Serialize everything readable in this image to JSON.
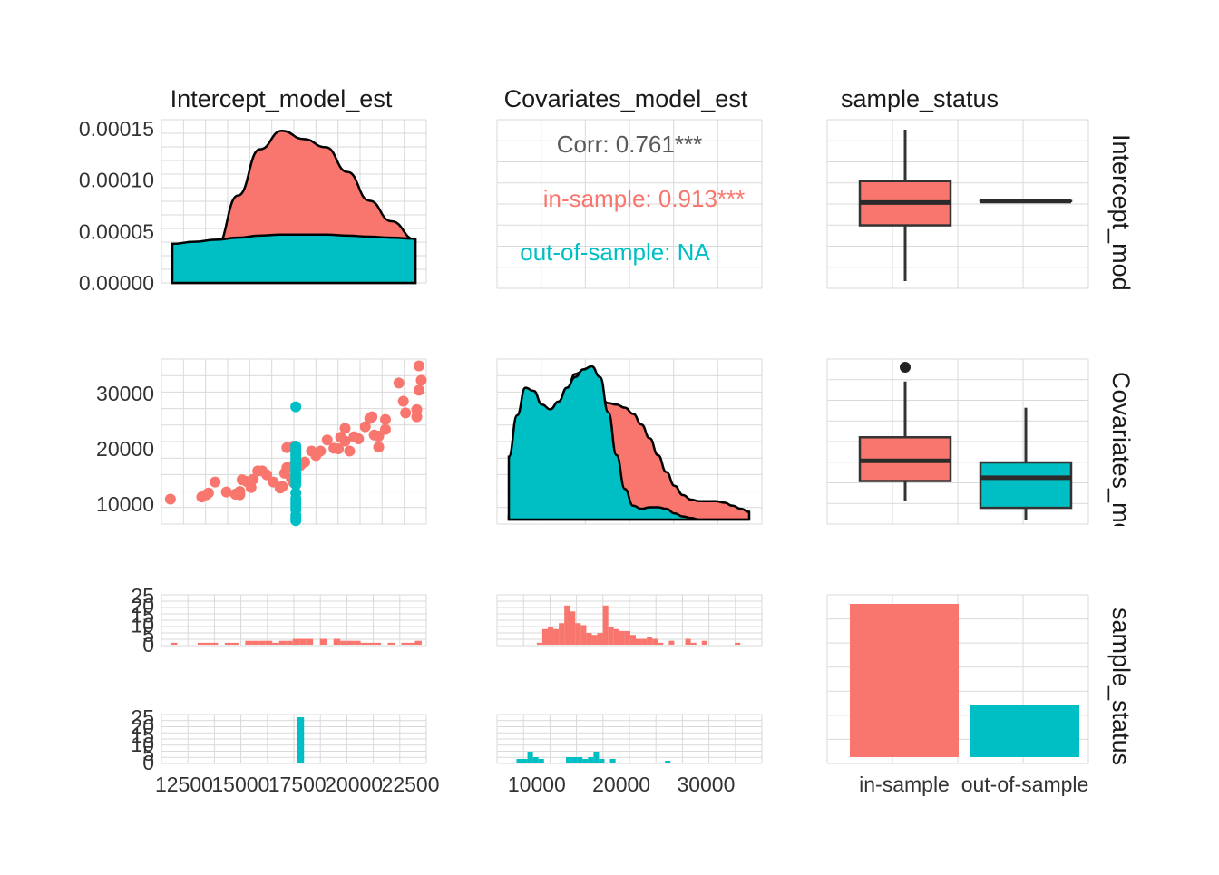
{
  "colors": {
    "in_sample": "#F8766D",
    "out_of_sample": "#00BFC4",
    "ink": "#000000",
    "grid": "#d9d9d9"
  },
  "columns": [
    "Intercept_model_est",
    "Covariates_model_est",
    "sample_status"
  ],
  "rows": [
    "Intercept_model_est",
    "Covariates_model_est",
    "sample_status"
  ],
  "chart_data": [
    {
      "type": "area",
      "panel": "density-intercept",
      "x_range": [
        11500,
        22600
      ],
      "y_range": [
        0,
        0.00015
      ],
      "y_ticks": [
        "0.00015",
        "0.00010",
        "0.00005",
        "0.00000"
      ],
      "y_tick_values": [
        0.00015,
        0.0001,
        5e-05,
        0
      ],
      "series": [
        {
          "name": "in-sample",
          "x": [
            11500,
            12500,
            13500,
            14500,
            15500,
            16500,
            17500,
            18500,
            19500,
            20500,
            21500,
            22600
          ],
          "values": [
            5e-07,
            8e-06,
            3.5e-05,
            8.5e-05,
            0.00013,
            0.000148,
            0.00014,
            0.000132,
            0.000108,
            8e-05,
            6e-05,
            4.2e-05
          ]
        },
        {
          "name": "out-of-sample",
          "x": [
            11500,
            12500,
            13500,
            14500,
            15500,
            16500,
            17500,
            18500,
            19500,
            20500,
            21500,
            22600
          ],
          "values": [
            3.8e-05,
            4e-05,
            4.2e-05,
            4.4e-05,
            4.6e-05,
            4.7e-05,
            4.7e-05,
            4.7e-05,
            4.6e-05,
            4.5e-05,
            4.4e-05,
            4.3e-05
          ]
        }
      ]
    },
    {
      "type": "table",
      "panel": "correlation",
      "entries": [
        {
          "label": "Corr: 0.761***",
          "color": "#595959"
        },
        {
          "label": "in-sample: 0.913***",
          "color": "#F8766D"
        },
        {
          "label": "out-of-sample:   NA",
          "color": "#00BFC4"
        }
      ]
    },
    {
      "type": "box",
      "panel": "box-intercept",
      "categories": [
        "in-sample",
        "out-of-sample"
      ],
      "y_range": [
        11900,
        22500
      ],
      "series": [
        {
          "name": "in-sample",
          "min": 11900,
          "q1": 15800,
          "median": 17400,
          "q3": 18900,
          "max": 22500,
          "outliers": []
        },
        {
          "name": "out-of-sample",
          "min": 17500,
          "q1": 17500,
          "median": 17500,
          "q3": 17500,
          "max": 17500,
          "outliers": []
        }
      ]
    },
    {
      "type": "scatter",
      "panel": "scatter",
      "x_range": [
        11500,
        23000
      ],
      "y_range": [
        6000,
        36500
      ],
      "y_ticks": [
        "30000",
        "20000",
        "10000"
      ],
      "y_tick_values": [
        30000,
        20000,
        10000
      ],
      "series": [
        {
          "name": "in-sample",
          "points": [
            [
              11900,
              10900
            ],
            [
              13300,
              11300
            ],
            [
              13500,
              11700
            ],
            [
              13900,
              14000
            ],
            [
              13600,
              12000
            ],
            [
              14400,
              12200
            ],
            [
              14800,
              11800
            ],
            [
              15000,
              12300
            ],
            [
              15000,
              11700
            ],
            [
              15100,
              14400
            ],
            [
              15300,
              14100
            ],
            [
              15500,
              13000
            ],
            [
              15600,
              14500
            ],
            [
              15800,
              16000
            ],
            [
              16000,
              16000
            ],
            [
              16200,
              15300
            ],
            [
              16500,
              14000
            ],
            [
              16800,
              12900
            ],
            [
              16900,
              13200
            ],
            [
              17000,
              15600
            ],
            [
              17100,
              16600
            ],
            [
              17300,
              16800
            ],
            [
              17400,
              13900
            ],
            [
              17500,
              16200
            ],
            [
              17300,
              14600
            ],
            [
              17100,
              20200
            ],
            [
              17400,
              20500
            ],
            [
              17700,
              17000
            ],
            [
              17900,
              17600
            ],
            [
              18200,
              19600
            ],
            [
              18400,
              18800
            ],
            [
              18600,
              19600
            ],
            [
              18900,
              21600
            ],
            [
              19200,
              20100
            ],
            [
              19400,
              20000
            ],
            [
              19500,
              22100
            ],
            [
              19700,
              23700
            ],
            [
              19900,
              19600
            ],
            [
              19700,
              21400
            ],
            [
              20100,
              22200
            ],
            [
              20300,
              21800
            ],
            [
              20600,
              24000
            ],
            [
              20800,
              25500
            ],
            [
              21000,
              22500
            ],
            [
              21200,
              20300
            ],
            [
              21500,
              23500
            ],
            [
              21200,
              22300
            ],
            [
              21500,
              25300
            ],
            [
              22100,
              31900
            ],
            [
              22300,
              28600
            ],
            [
              22400,
              26500
            ],
            [
              22900,
              27100
            ],
            [
              22900,
              25800
            ],
            [
              23000,
              30600
            ],
            [
              23100,
              32400
            ],
            [
              23000,
              35000
            ],
            [
              20900,
              25800
            ]
          ]
        },
        {
          "name": "out-of-sample",
          "points": [
            [
              17500,
              27600
            ],
            [
              17500,
              20500
            ],
            [
              17500,
              20000
            ],
            [
              17500,
              19600
            ],
            [
              17500,
              19100
            ],
            [
              17500,
              18700
            ],
            [
              17500,
              18300
            ],
            [
              17500,
              17900
            ],
            [
              17500,
              17500
            ],
            [
              17500,
              17000
            ],
            [
              17500,
              16500
            ],
            [
              17500,
              16000
            ],
            [
              17500,
              15500
            ],
            [
              17500,
              15000
            ],
            [
              17500,
              14500
            ],
            [
              17500,
              14000
            ],
            [
              17500,
              13500
            ],
            [
              17500,
              12000
            ],
            [
              17500,
              11000
            ],
            [
              17500,
              10500
            ],
            [
              17500,
              10000
            ],
            [
              17500,
              9500
            ],
            [
              17500,
              9000
            ],
            [
              17500,
              8000
            ],
            [
              17500,
              7500
            ],
            [
              17500,
              7000
            ]
          ]
        }
      ]
    },
    {
      "type": "area",
      "panel": "density-covariates",
      "x_range": [
        6500,
        35500
      ],
      "y_range": [
        0,
        1
      ],
      "series": [
        {
          "name": "in-sample",
          "x": [
            6500,
            7500,
            8500,
            9500,
            10500,
            11500,
            12500,
            13500,
            14500,
            15500,
            16500,
            17500,
            18500,
            19500,
            20500,
            21500,
            22500,
            23500,
            24500,
            25500,
            26500,
            27500,
            28500,
            29500,
            30500,
            31500,
            32500,
            33500,
            34500,
            35500
          ],
          "values": [
            0.02,
            0.06,
            0.14,
            0.26,
            0.4,
            0.54,
            0.68,
            0.84,
            0.95,
            0.97,
            0.9,
            0.8,
            0.76,
            0.75,
            0.73,
            0.69,
            0.62,
            0.53,
            0.42,
            0.31,
            0.22,
            0.16,
            0.13,
            0.12,
            0.12,
            0.12,
            0.11,
            0.09,
            0.07,
            0.05
          ]
        },
        {
          "name": "out-of-sample",
          "x": [
            6500,
            7500,
            8500,
            9500,
            10500,
            11500,
            12500,
            13500,
            14500,
            15500,
            16500,
            17500,
            18500,
            19500,
            20500,
            21500,
            22500,
            23500,
            24500,
            25500,
            26500,
            27500,
            28500,
            29500,
            30500,
            31500,
            32500,
            33500,
            34500,
            35500
          ],
          "values": [
            0.41,
            0.68,
            0.86,
            0.84,
            0.75,
            0.72,
            0.77,
            0.86,
            0.93,
            0.98,
            1.0,
            0.93,
            0.7,
            0.42,
            0.2,
            0.09,
            0.07,
            0.08,
            0.08,
            0.07,
            0.04,
            0.02,
            0.01,
            0.0,
            0.0,
            0.0,
            0.0,
            0.0,
            0.0,
            0.0
          ]
        }
      ]
    },
    {
      "type": "box",
      "panel": "box-covariates",
      "categories": [
        "in-sample",
        "out-of-sample"
      ],
      "y_range": [
        6000,
        36500
      ],
      "series": [
        {
          "name": "in-sample",
          "min": 10500,
          "q1": 14200,
          "median": 17900,
          "q3": 22200,
          "max": 32400,
          "outliers": [
            35000
          ]
        },
        {
          "name": "out-of-sample",
          "min": 7000,
          "q1": 9300,
          "median": 14800,
          "q3": 17600,
          "max": 27600,
          "outliers": []
        }
      ]
    },
    {
      "type": "bar",
      "panel": "hist-intercept-in",
      "x_range": [
        11500,
        23200
      ],
      "y_range": [
        0,
        25
      ],
      "y_ticks": [
        "25",
        "20",
        "15",
        "10",
        "5",
        "0"
      ],
      "y_tick_values": [
        25,
        20,
        15,
        10,
        5,
        0
      ],
      "x": [
        11900,
        12200,
        12500,
        12800,
        13100,
        13400,
        13700,
        14000,
        14300,
        14600,
        14900,
        15200,
        15500,
        15800,
        16100,
        16400,
        16700,
        17000,
        17300,
        17600,
        17900,
        18200,
        18500,
        18800,
        19100,
        19400,
        19700,
        20000,
        20300,
        20600,
        20900,
        21200,
        21500,
        21800,
        22100,
        22400,
        22700,
        23000
      ],
      "values": [
        1,
        0,
        0,
        0,
        1,
        1,
        1,
        0,
        1,
        1,
        0,
        2,
        2,
        2,
        2,
        1,
        2,
        2,
        3,
        3,
        3,
        0,
        3,
        0,
        3,
        2,
        2,
        2,
        1,
        1,
        1,
        0,
        1,
        0,
        1,
        1,
        2,
        0
      ],
      "bin_width": 300
    },
    {
      "type": "bar",
      "panel": "hist-covariates-in",
      "x_range": [
        5300,
        36600
      ],
      "y_range": [
        0,
        25
      ],
      "x": [
        10000,
        10650,
        11300,
        11950,
        12600,
        13250,
        13900,
        14550,
        15200,
        15850,
        16500,
        17150,
        17800,
        18450,
        19100,
        19750,
        20400,
        21050,
        21700,
        22350,
        23000,
        23650,
        24300,
        24950,
        25600,
        26250,
        26900,
        27550,
        28200,
        28850,
        29500,
        30150,
        30800,
        31450,
        32100,
        32750,
        33400,
        34050,
        34700
      ],
      "values": [
        1,
        8,
        9,
        8,
        11,
        20,
        17,
        11,
        10,
        6,
        5,
        6,
        20,
        9,
        8,
        7,
        7,
        5,
        3,
        3,
        4,
        3,
        1,
        0,
        2,
        0,
        0,
        3,
        1,
        0,
        2,
        0,
        0,
        0,
        0,
        0,
        1,
        0,
        0
      ],
      "bin_width": 650
    },
    {
      "type": "bar",
      "panel": "hist-intercept-out",
      "x_range": [
        11500,
        23200
      ],
      "y_range": [
        0,
        25
      ],
      "y_ticks": [
        "25",
        "20",
        "15",
        "10",
        "5",
        "0"
      ],
      "y_tick_values": [
        25,
        20,
        15,
        10,
        5,
        0
      ],
      "x_ticks": [
        "12500",
        "15000",
        "17500",
        "20000",
        "22500"
      ],
      "x_tick_values": [
        12500,
        15000,
        17500,
        20000,
        22500
      ],
      "x": [
        17500
      ],
      "values": [
        25
      ],
      "bin_width": 300
    },
    {
      "type": "bar",
      "panel": "hist-covariates-out",
      "x_range": [
        5300,
        36600
      ],
      "y_range": [
        0,
        25
      ],
      "x_ticks": [
        "10000",
        "20000",
        "30000"
      ],
      "x_tick_values": [
        10000,
        20000,
        30000
      ],
      "x": [
        6950,
        7600,
        8250,
        8900,
        9550,
        10200,
        10850,
        11500,
        12150,
        12800,
        13450,
        14100,
        14750,
        15400,
        16050,
        16700,
        17350,
        18000,
        18650,
        19300,
        19950,
        20600,
        21250,
        21900,
        22550,
        23200,
        23850,
        24500,
        25150,
        25800
      ],
      "values": [
        0,
        2,
        2,
        6,
        3,
        2,
        0,
        0,
        0,
        0,
        3,
        3,
        3,
        2,
        3,
        6,
        2,
        0,
        2,
        0,
        0,
        0,
        0,
        0,
        0,
        0,
        0,
        0,
        1,
        0
      ],
      "bin_width": 650
    },
    {
      "type": "bar",
      "panel": "bar-status",
      "categories": [
        "in-sample",
        "out-of-sample"
      ],
      "values": [
        59,
        20
      ],
      "y_range": [
        0,
        59
      ]
    }
  ]
}
